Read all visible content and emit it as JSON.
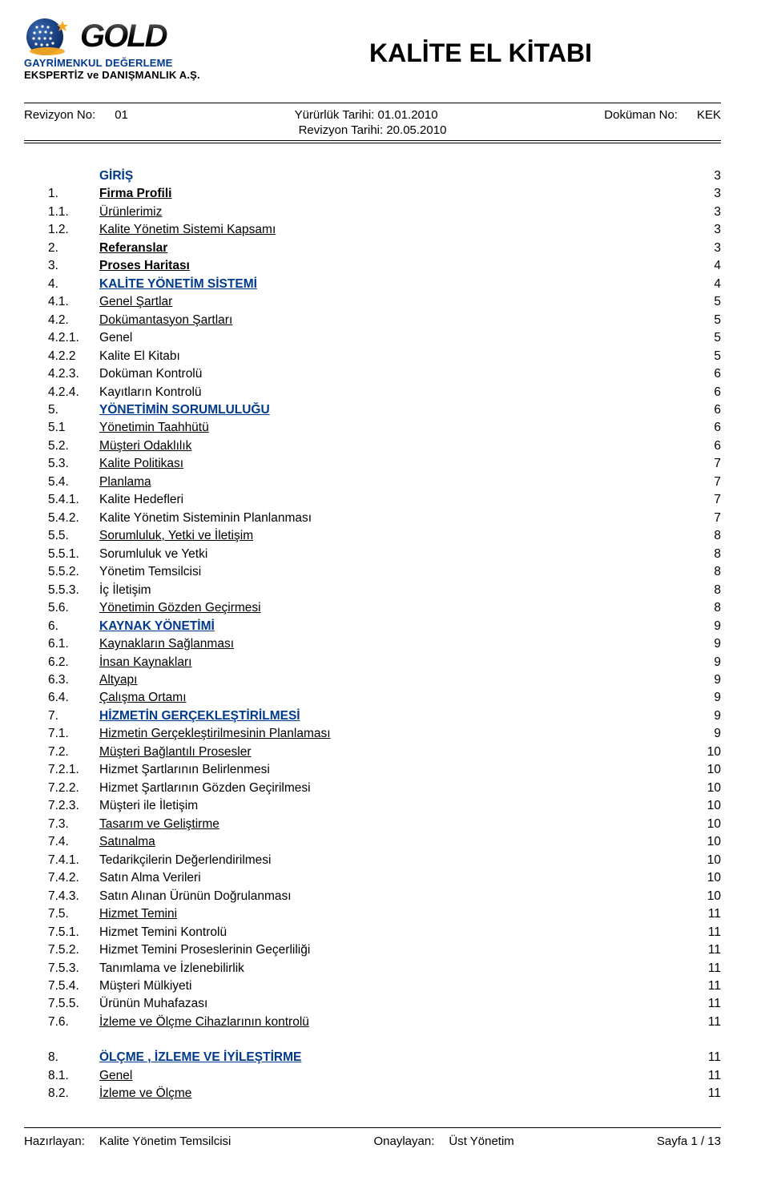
{
  "logo": {
    "main": "GOLD",
    "sub1": "GAYRİMENKUL DEĞERLEME",
    "sub2": "EKSPERTİZ ve DANIŞMANLIK A.Ş.",
    "accent_color": "#003a8c",
    "star_color": "#f5a623"
  },
  "title": "KALİTE EL KİTABI",
  "meta": {
    "rev_no_label": "Revizyon No:",
    "rev_no": "01",
    "eff_date_label": "Yürürlük Tarihi:",
    "eff_date": "01.01.2010",
    "doc_no_label": "Doküman No:",
    "doc_no": "KEK",
    "rev_date_label": "Revizyon Tarihi:",
    "rev_date": "20.05.2010"
  },
  "toc": [
    {
      "num": "",
      "label": "GİRİŞ",
      "page": "3",
      "lvl": 1,
      "blue": true,
      "underline": false
    },
    {
      "num": "1.",
      "label": "Firma Profili",
      "page": "3",
      "lvl": 1
    },
    {
      "num": "1.1.",
      "label": "Ürünlerimiz",
      "page": "3",
      "lvl": 2
    },
    {
      "num": "1.2.",
      "label": "Kalite Yönetim Sistemi Kapsamı",
      "page": "3",
      "lvl": 2
    },
    {
      "num": "2.",
      "label": "Referanslar",
      "page": "3",
      "lvl": 1
    },
    {
      "num": "3.",
      "label": "Proses Haritası",
      "page": "4",
      "lvl": 1
    },
    {
      "num": "4.",
      "label": "KALİTE YÖNETİM SİSTEMİ",
      "page": "4",
      "lvl": 1,
      "blue": true
    },
    {
      "num": "4.1.",
      "label": "Genel Şartlar",
      "page": "5",
      "lvl": 2
    },
    {
      "num": "4.2.",
      "label": "Dokümantasyon Şartları",
      "page": "5",
      "lvl": 2
    },
    {
      "num": "4.2.1.",
      "label": "Genel",
      "page": "5",
      "lvl": 3
    },
    {
      "num": "4.2.2",
      "label": "Kalite El Kitabı",
      "page": "5",
      "lvl": 3
    },
    {
      "num": "4.2.3.",
      "label": "Doküman Kontrolü",
      "page": "6",
      "lvl": 3
    },
    {
      "num": "4.2.4.",
      "label": "Kayıtların Kontrolü",
      "page": "6",
      "lvl": 3
    },
    {
      "num": "5.",
      "label": "YÖNETİMİN SORUMLULUĞU",
      "page": "6",
      "lvl": 1,
      "blue": true
    },
    {
      "num": "5.1",
      "label": "Yönetimin Taahhütü",
      "page": "6",
      "lvl": 2
    },
    {
      "num": "5.2.",
      "label": "Müşteri Odaklılık",
      "page": "6",
      "lvl": 2
    },
    {
      "num": "5.3.",
      "label": "Kalite Politikası",
      "page": "7",
      "lvl": 2
    },
    {
      "num": "5.4.",
      "label": "Planlama",
      "page": "7",
      "lvl": 2
    },
    {
      "num": "5.4.1.",
      "label": "Kalite Hedefleri",
      "page": "7",
      "lvl": 3
    },
    {
      "num": "5.4.2.",
      "label": "Kalite Yönetim Sisteminin Planlanması",
      "page": "7",
      "lvl": 3
    },
    {
      "num": "5.5.",
      "label": "Sorumluluk, Yetki ve İletişim",
      "page": "8",
      "lvl": 2
    },
    {
      "num": "5.5.1.",
      "label": "Sorumluluk ve Yetki",
      "page": "8",
      "lvl": 3
    },
    {
      "num": "5.5.2.",
      "label": "Yönetim Temsilcisi",
      "page": "8",
      "lvl": 3
    },
    {
      "num": "5.5.3.",
      "label": "İç İletişim",
      "page": "8",
      "lvl": 3
    },
    {
      "num": "5.6.",
      "label": "Yönetimin Gözden Geçirmesi",
      "page": "8",
      "lvl": 2
    },
    {
      "num": "6.",
      "label": "KAYNAK YÖNETİMİ",
      "page": "9",
      "lvl": 1,
      "blue": true
    },
    {
      "num": "6.1.",
      "label": "Kaynakların Sağlanması",
      "page": "9",
      "lvl": 2
    },
    {
      "num": "6.2.",
      "label": "İnsan Kaynakları",
      "page": "9",
      "lvl": 2
    },
    {
      "num": "6.3.",
      "label": "Altyapı",
      "page": "9",
      "lvl": 2
    },
    {
      "num": "6.4.",
      "label": "Çalışma Ortamı",
      "page": "9",
      "lvl": 2
    },
    {
      "num": "7.",
      "label": "HİZMETİN GERÇEKLEŞTİRİLMESİ",
      "page": "9",
      "lvl": 1,
      "blue": true
    },
    {
      "num": "7.1.",
      "label": "Hizmetin Gerçekleştirilmesinin Planlaması",
      "page": "9",
      "lvl": 2
    },
    {
      "num": "7.2.",
      "label": "Müşteri Bağlantılı Prosesler",
      "page": "10",
      "lvl": 2
    },
    {
      "num": "7.2.1.",
      "label": "Hizmet Şartlarının Belirlenmesi",
      "page": "10",
      "lvl": 3
    },
    {
      "num": "7.2.2.",
      "label": "Hizmet Şartlarının Gözden Geçirilmesi",
      "page": "10",
      "lvl": 3
    },
    {
      "num": "7.2.3.",
      "label": "Müşteri ile İletişim",
      "page": "10",
      "lvl": 3
    },
    {
      "num": "7.3.",
      "label": "Tasarım ve Geliştirme",
      "page": "10",
      "lvl": 2
    },
    {
      "num": "7.4.",
      "label": "Satınalma",
      "page": "10",
      "lvl": 2
    },
    {
      "num": "7.4.1.",
      "label": "Tedarikçilerin Değerlendirilmesi",
      "page": "10",
      "lvl": 3
    },
    {
      "num": "7.4.2.",
      "label": "Satın Alma Verileri",
      "page": "10",
      "lvl": 3
    },
    {
      "num": "7.4.3.",
      "label": "Satın Alınan Ürünün Doğrulanması",
      "page": "10",
      "lvl": 3
    },
    {
      "num": "7.5.",
      "label": "Hizmet Temini",
      "page": "11",
      "lvl": 2
    },
    {
      "num": "7.5.1.",
      "label": "Hizmet Temini Kontrolü",
      "page": "11",
      "lvl": 3
    },
    {
      "num": "7.5.2.",
      "label": "Hizmet Temini Proseslerinin Geçerliliği",
      "page": "11",
      "lvl": 3
    },
    {
      "num": "7.5.3.",
      "label": "Tanımlama ve İzlenebilirlik",
      "page": "11",
      "lvl": 3
    },
    {
      "num": "7.5.4.",
      "label": "Müşteri Mülkiyeti",
      "page": "11",
      "lvl": 3
    },
    {
      "num": "7.5.5.",
      "label": "Ürünün Muhafazası",
      "page": "11",
      "lvl": 3
    },
    {
      "num": "7.6.",
      "label": "İzleme ve Ölçme Cihazlarının kontrolü",
      "page": "11",
      "lvl": 2
    },
    {
      "gap": true
    },
    {
      "num": "8.",
      "label": "ÖLÇME , İZLEME VE İYİLEŞTİRME",
      "page": "11",
      "lvl": 1,
      "blue": true
    },
    {
      "num": "8.1.",
      "label": "Genel",
      "page": "11",
      "lvl": 2
    },
    {
      "num": "8.2.",
      "label": "İzleme ve Ölçme",
      "page": "11",
      "lvl": 2
    }
  ],
  "footer": {
    "prep_label": "Hazırlayan:",
    "prep_value": "Kalite Yönetim Temsilcisi",
    "appr_label": "Onaylayan:",
    "appr_value": "Üst  Yönetim",
    "page_label": "Sayfa",
    "page_current": "1",
    "page_sep": "/",
    "page_total": "13"
  },
  "colors": {
    "text": "#000000",
    "blue": "#003a8c",
    "background": "#ffffff"
  }
}
